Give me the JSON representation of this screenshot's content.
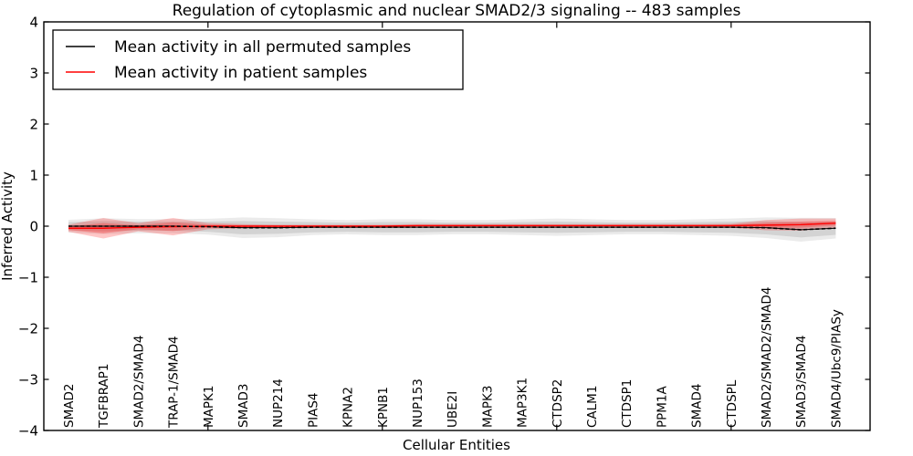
{
  "chart_data": {
    "type": "line",
    "title": "Regulation of cytoplasmic and nuclear SMAD2/3 signaling -- 483 samples",
    "xlabel": "Cellular Entities",
    "ylabel": "Inferred Activity",
    "ylim": [
      -4,
      4
    ],
    "yticks": [
      4,
      3,
      2,
      1,
      0,
      -1,
      -2,
      -3,
      -4
    ],
    "grid": false,
    "legend_position": "upper left",
    "categories": [
      "SMAD2",
      "TGFBRAP1",
      "SMAD2/SMAD4",
      "TRAP-1/SMAD4",
      "MAPK1",
      "SMAD3",
      "NUP214",
      "PIAS4",
      "KPNA2",
      "KPNB1",
      "NUP153",
      "UBE2I",
      "MAPK3",
      "MAP3K1",
      "CTDSP2",
      "CALM1",
      "CTDSP1",
      "PPM1A",
      "SMAD4",
      "CTDSPL",
      "SMAD2/SMAD2/SMAD4",
      "SMAD3/SMAD4",
      "SMAD4/Ubc9/PIASy"
    ],
    "xtick_mark_indices": [
      4,
      9,
      14,
      19
    ],
    "series": [
      {
        "name": "Mean activity in all permuted samples",
        "color": "#000000",
        "band_color_inner": "rgba(0,0,0,0.10)",
        "band_color_outer": "rgba(0,0,0,0.08)",
        "values": [
          0,
          0,
          0,
          0,
          -0.01,
          -0.03,
          -0.03,
          -0.02,
          -0.02,
          -0.02,
          -0.02,
          -0.02,
          -0.02,
          -0.02,
          -0.02,
          -0.02,
          -0.02,
          -0.02,
          -0.02,
          -0.02,
          -0.03,
          -0.07,
          -0.04
        ],
        "band_halfwidth": [
          0.08,
          0.1,
          0.09,
          0.09,
          0.1,
          0.13,
          0.12,
          0.1,
          0.09,
          0.1,
          0.1,
          0.09,
          0.09,
          0.1,
          0.11,
          0.1,
          0.09,
          0.09,
          0.1,
          0.11,
          0.13,
          0.15,
          0.13
        ]
      },
      {
        "name": "Mean activity in patient samples",
        "color": "#ff0000",
        "band_color_inner": "rgba(255,0,0,0.25)",
        "band_color_outer": "rgba(255,0,0,0.22)",
        "values": [
          -0.04,
          -0.04,
          -0.02,
          -0.01,
          0,
          0,
          0,
          0,
          0,
          0,
          0.01,
          0.01,
          0.01,
          0.01,
          0.01,
          0.01,
          0.01,
          0.01,
          0.01,
          0.01,
          0.02,
          0.03,
          0.06
        ],
        "band_halfwidth": [
          0.07,
          0.2,
          0.08,
          0.17,
          0.06,
          0.04,
          0.03,
          0.03,
          0.03,
          0.03,
          0.03,
          0.03,
          0.03,
          0.03,
          0.03,
          0.03,
          0.03,
          0.03,
          0.03,
          0.04,
          0.1,
          0.12,
          0.09
        ]
      }
    ]
  }
}
